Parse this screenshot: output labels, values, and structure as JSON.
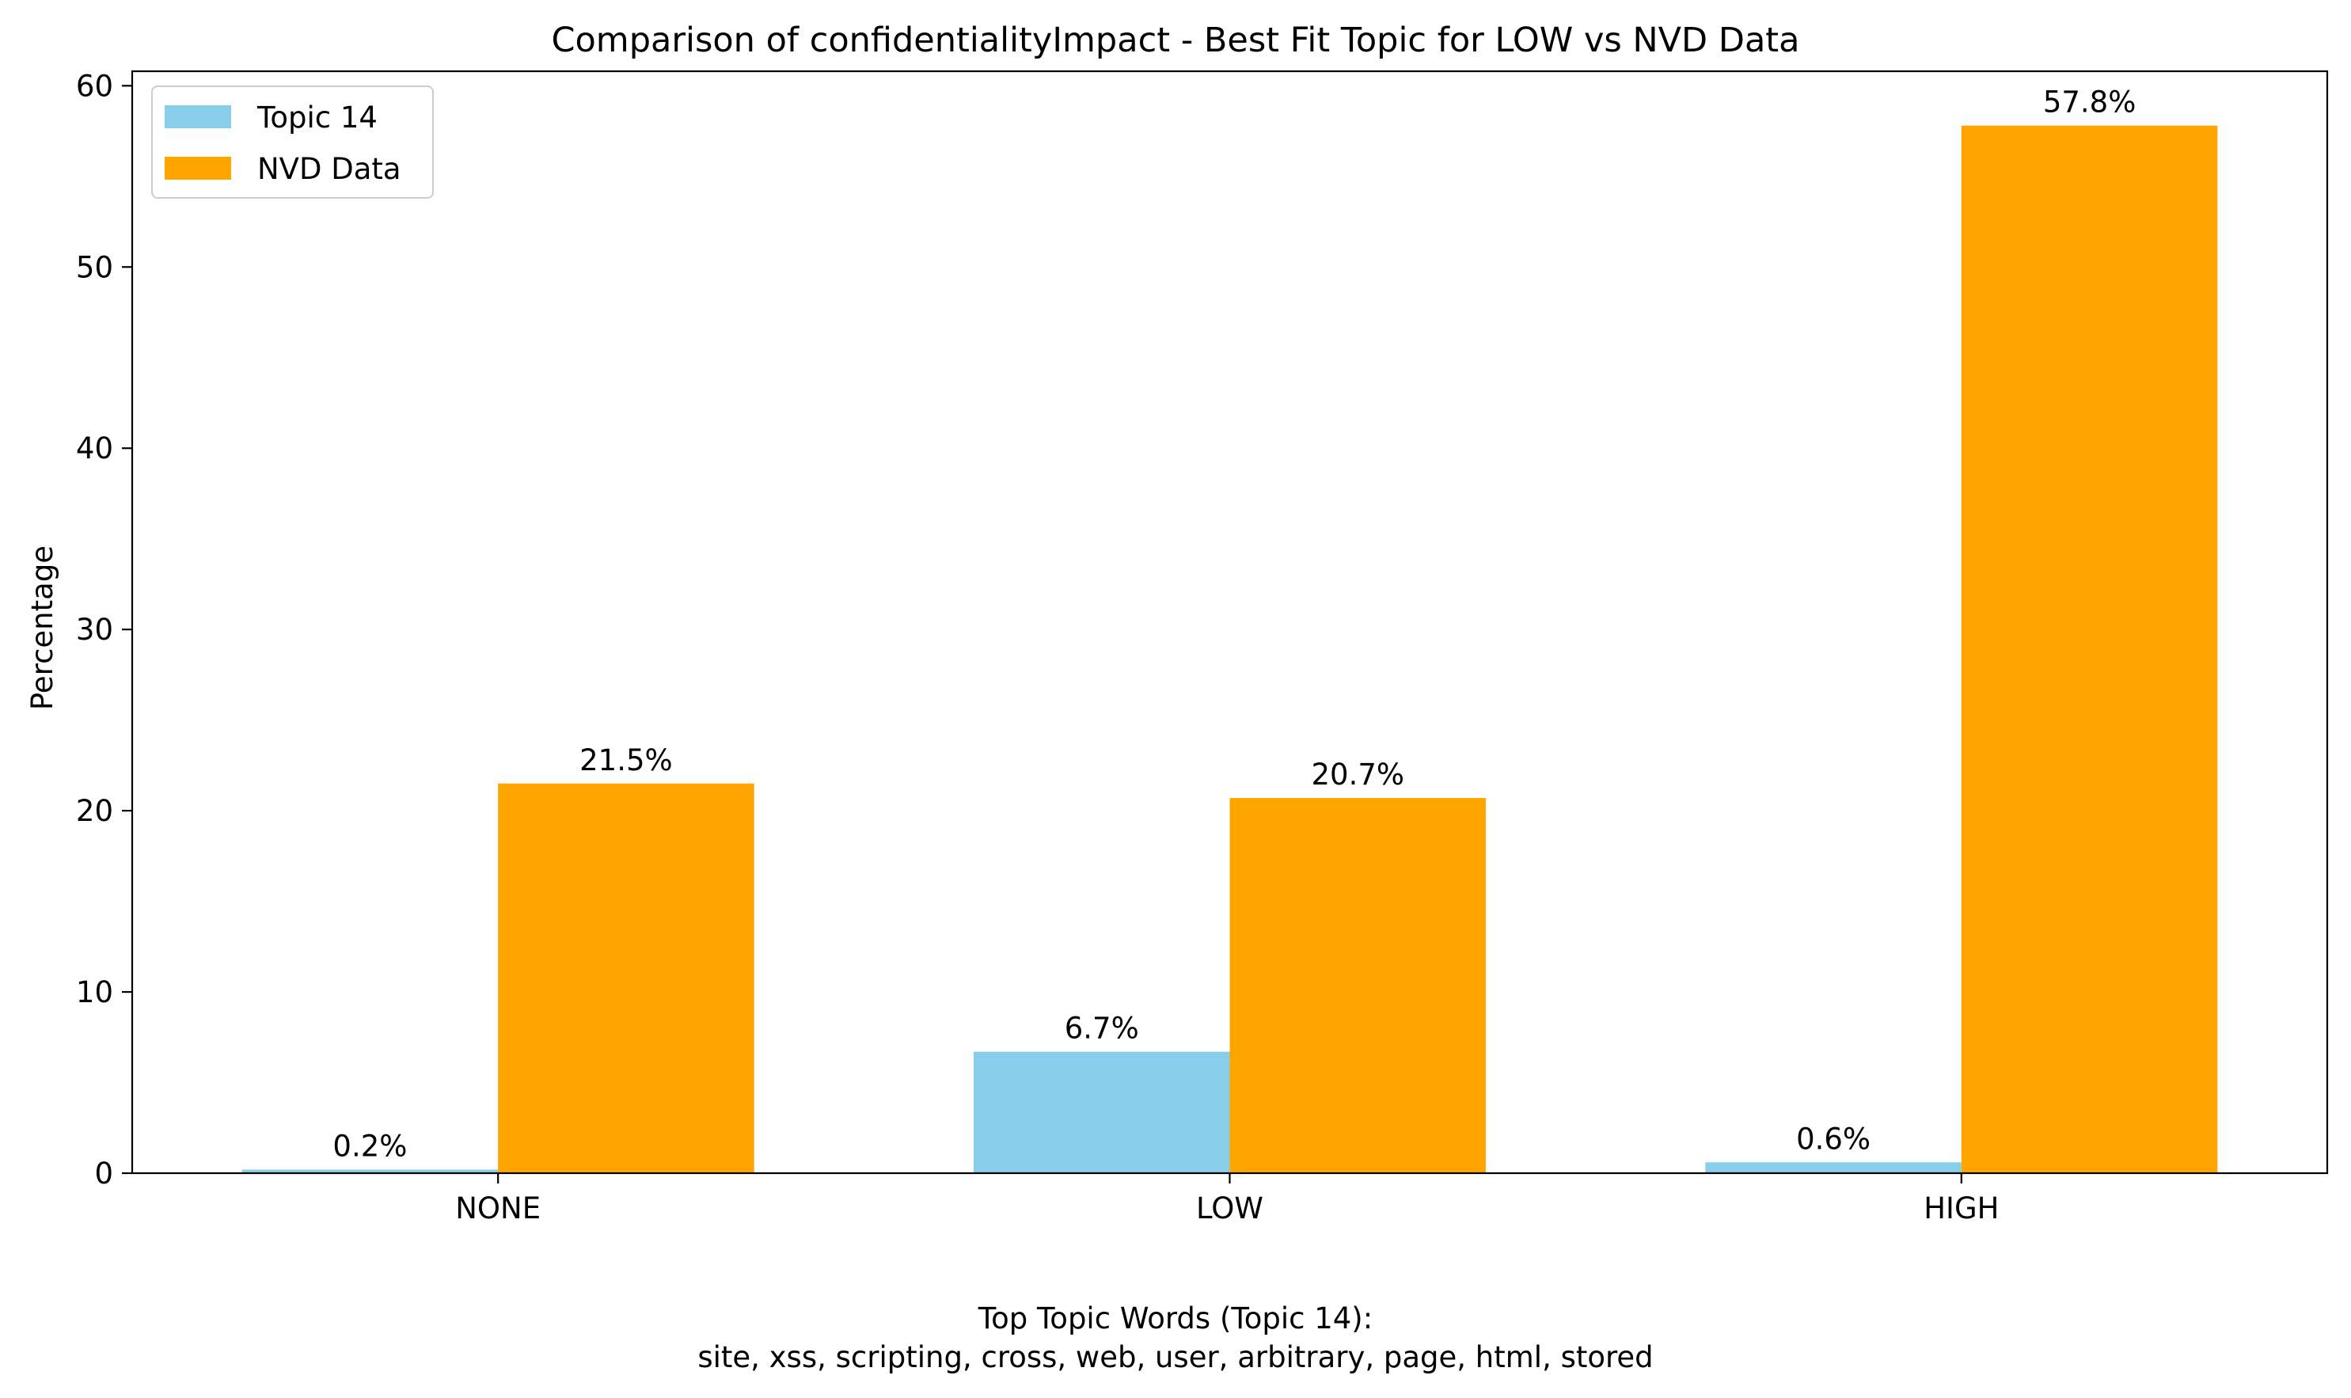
{
  "chart_data": {
    "type": "bar",
    "title": "Comparison of confidentialityImpact - Best Fit Topic for LOW vs NVD Data",
    "xlabel": "",
    "ylabel": "Percentage",
    "categories": [
      "NONE",
      "LOW",
      "HIGH"
    ],
    "series": [
      {
        "name": "Topic 14",
        "values": [
          0.2,
          6.7,
          0.6
        ],
        "labels": [
          "0.2%",
          "6.7%",
          "0.6%"
        ],
        "color": "#87CEEB"
      },
      {
        "name": "NVD Data",
        "values": [
          21.5,
          20.7,
          57.8
        ],
        "labels": [
          "21.5%",
          "20.7%",
          "57.8%"
        ],
        "color": "#FFA500"
      }
    ],
    "ylim": [
      0,
      60.8
    ],
    "yticks": [
      0,
      10,
      20,
      30,
      40,
      50,
      60
    ],
    "ytick_labels": [
      "0",
      "10",
      "20",
      "30",
      "40",
      "50",
      "60"
    ],
    "legend_position": "top-left",
    "grid": false,
    "footnote": {
      "heading": "Top Topic Words (Topic 14):",
      "words": "site,  xss,  scripting,  cross,  web,  user,  arbitrary,  page,  html,  stored"
    }
  }
}
